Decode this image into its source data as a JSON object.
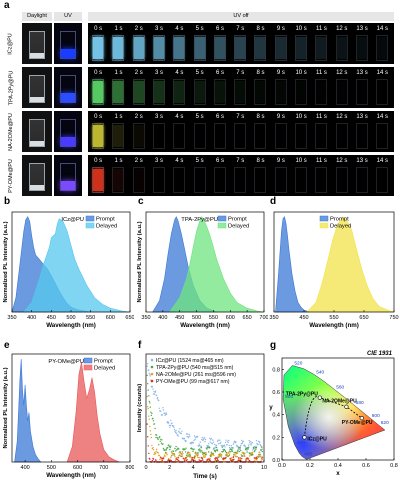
{
  "panel_letters": {
    "a": "a",
    "b": "b",
    "c": "c",
    "d": "d",
    "e": "e",
    "f": "f",
    "g": "g"
  },
  "panel_a": {
    "headers": {
      "daylight": "Daylight",
      "uv": "UV",
      "uv_off": "UV off"
    },
    "time_labels": [
      "0 s",
      "1 s",
      "2 s",
      "3 s",
      "4 s",
      "5 s",
      "6 s",
      "7 s",
      "8 s",
      "9 s",
      "10 s",
      "11 s",
      "12 s",
      "13 s",
      "14 s"
    ],
    "rows": [
      {
        "label": "ICz@PU",
        "uv_color": "#1a3cff",
        "glow_color": "#7fd8ff",
        "glow_decay": [
          1,
          0.95,
          0.85,
          0.72,
          0.6,
          0.5,
          0.42,
          0.35,
          0.28,
          0.22,
          0.18,
          0.14,
          0.1,
          0.07,
          0.05
        ]
      },
      {
        "label": "TPA-2Py@PU",
        "uv_color": "#2b4dff",
        "glow_color": "#5ee06a",
        "glow_decay": [
          1,
          0.55,
          0.35,
          0.25,
          0.18,
          0.12,
          0.09,
          0.06,
          0.04,
          0.03,
          0.02,
          0.01,
          0.01,
          0,
          0
        ]
      },
      {
        "label": "NA-2OMe@PU",
        "uv_color": "#4a3cff",
        "glow_color": "#e8e23a",
        "glow_decay": [
          0.9,
          0.15,
          0.05,
          0,
          0,
          0,
          0,
          0,
          0,
          0,
          0,
          0,
          0,
          0,
          0
        ]
      },
      {
        "label": "PY-OMe@PU",
        "uv_color": "#7a4aff",
        "glow_color": "#ff3b20",
        "glow_decay": [
          0.9,
          0.1,
          0.03,
          0,
          0,
          0,
          0,
          0,
          0,
          0,
          0,
          0,
          0,
          0,
          0
        ]
      }
    ]
  },
  "chart_data": [
    {
      "id": "b",
      "type": "area",
      "legend": [
        "Prompt",
        "Delayed"
      ],
      "inset_label": "ICz@PU",
      "xlabel": "Wavelength (nm)",
      "ylabel": "Normalized PL Intensity (a.u.)",
      "xlim": [
        350,
        650
      ],
      "ylim": [
        0,
        1.05
      ],
      "xticks": [
        350,
        400,
        450,
        500,
        550,
        600,
        650
      ],
      "series": [
        {
          "name": "Prompt",
          "color": "#3a78d6",
          "x": [
            350,
            360,
            370,
            380,
            385,
            390,
            395,
            400,
            405,
            410,
            420,
            430,
            440,
            450,
            460,
            470,
            480,
            490,
            500,
            520,
            550
          ],
          "y": [
            0,
            0.15,
            0.5,
            0.85,
            0.97,
            1.0,
            0.95,
            0.8,
            0.68,
            0.6,
            0.55,
            0.5,
            0.45,
            0.38,
            0.3,
            0.22,
            0.15,
            0.09,
            0.05,
            0.02,
            0
          ]
        },
        {
          "name": "Delayed",
          "color": "#55c8ee",
          "x": [
            380,
            400,
            420,
            430,
            440,
            445,
            450,
            455,
            460,
            465,
            470,
            480,
            490,
            500,
            510,
            520,
            540,
            560,
            580,
            600,
            630,
            650
          ],
          "y": [
            0,
            0.1,
            0.35,
            0.5,
            0.62,
            0.68,
            0.78,
            0.8,
            0.82,
            0.92,
            0.98,
            0.95,
            0.85,
            0.7,
            0.55,
            0.45,
            0.28,
            0.15,
            0.08,
            0.04,
            0.01,
            0
          ]
        }
      ]
    },
    {
      "id": "c",
      "type": "area",
      "legend": [
        "Prompt",
        "Delayed"
      ],
      "inset_label": "TPA-2Py@PU",
      "xlabel": "Wavelength (nm)",
      "ylabel": "Normalized PL Intensity (a.u.)",
      "xlim": [
        350,
        700
      ],
      "ylim": [
        0,
        1.05
      ],
      "xticks": [
        350,
        400,
        450,
        500,
        550,
        600,
        650,
        700
      ],
      "series": [
        {
          "name": "Prompt",
          "color": "#3a78d6",
          "x": [
            370,
            390,
            405,
            415,
            425,
            435,
            440,
            445,
            455,
            465,
            475,
            490,
            510,
            530,
            560
          ],
          "y": [
            0,
            0.12,
            0.35,
            0.6,
            0.82,
            0.97,
            1.0,
            0.96,
            0.82,
            0.65,
            0.48,
            0.28,
            0.12,
            0.04,
            0
          ]
        },
        {
          "name": "Delayed",
          "color": "#6ee47e",
          "x": [
            420,
            450,
            470,
            480,
            490,
            500,
            510,
            515,
            520,
            530,
            540,
            550,
            560,
            580,
            600,
            620,
            650,
            680,
            700
          ],
          "y": [
            0,
            0.15,
            0.35,
            0.5,
            0.68,
            0.85,
            0.96,
            1.0,
            0.98,
            0.9,
            0.8,
            0.68,
            0.55,
            0.35,
            0.2,
            0.1,
            0.04,
            0.01,
            0
          ]
        }
      ]
    },
    {
      "id": "d",
      "type": "area",
      "legend": [
        "Prompt",
        "Delayed"
      ],
      "xlabel": "Wavelength (nm)",
      "ylabel": "",
      "xlim": [
        350,
        750
      ],
      "ylim": [
        0,
        1.05
      ],
      "xticks": [
        350,
        450,
        550,
        650,
        750
      ],
      "series": [
        {
          "name": "Prompt",
          "color": "#3a78d6",
          "x": [
            355,
            365,
            375,
            380,
            385,
            390,
            395,
            400,
            410,
            420,
            430,
            440,
            450,
            470
          ],
          "y": [
            0,
            0.4,
            0.85,
            0.98,
            1.0,
            0.93,
            0.8,
            0.65,
            0.4,
            0.22,
            0.1,
            0.05,
            0.02,
            0
          ]
        },
        {
          "name": "Delayed",
          "color": "#f2e34a",
          "x": [
            460,
            490,
            510,
            530,
            545,
            560,
            570,
            580,
            590,
            600,
            610,
            620,
            640,
            660,
            680,
            700,
            730,
            750
          ],
          "y": [
            0,
            0.1,
            0.3,
            0.55,
            0.75,
            0.9,
            0.96,
            1.0,
            0.97,
            0.92,
            0.85,
            0.72,
            0.48,
            0.28,
            0.14,
            0.06,
            0.02,
            0
          ]
        }
      ]
    },
    {
      "id": "e",
      "type": "area",
      "legend": [
        "Prompt",
        "Delayed"
      ],
      "inset_label": "PY-OMe@PU",
      "xlabel": "Wavelength (nm)",
      "ylabel": "Normalized PL Intensity (a.u.)",
      "xlim": [
        350,
        800
      ],
      "ylim": [
        0,
        1.05
      ],
      "xticks": [
        400,
        500,
        600,
        700,
        800
      ],
      "series": [
        {
          "name": "Prompt",
          "color": "#3a78d6",
          "x": [
            360,
            370,
            375,
            380,
            385,
            390,
            395,
            400,
            405,
            410,
            415,
            420,
            430,
            440,
            450,
            460
          ],
          "y": [
            0,
            0.2,
            0.5,
            0.8,
            1.0,
            0.7,
            0.55,
            0.75,
            0.55,
            0.4,
            0.48,
            0.3,
            0.15,
            0.07,
            0.03,
            0
          ]
        },
        {
          "name": "Delayed",
          "color": "#e85858",
          "x": [
            560,
            580,
            595,
            605,
            615,
            625,
            635,
            645,
            655,
            665,
            675,
            685,
            700,
            720,
            740,
            760
          ],
          "y": [
            0,
            0.15,
            0.5,
            0.85,
            0.97,
            0.78,
            0.62,
            0.7,
            0.82,
            0.68,
            0.45,
            0.28,
            0.12,
            0.05,
            0.02,
            0
          ]
        }
      ]
    },
    {
      "id": "f",
      "type": "scatter",
      "xlabel": "Time (s)",
      "ylabel": "Intensity (counts)",
      "xlim": [
        0,
        10
      ],
      "xticks": [
        0,
        2,
        4,
        6,
        8,
        10
      ],
      "legend": [
        "ICz@PU (1524 ms@465 nm)",
        "TPA-2Py@PU (540 ms@515 nm)",
        "NA-2OMe@PU (261 ms@596 nm)",
        "PY-OMe@PU (99 ms@617 nm)"
      ],
      "series": [
        {
          "name": "ICz@PU (1524 ms@465 nm)",
          "color": "#8fb8e8",
          "tau": 1.524,
          "floor": 0.18
        },
        {
          "name": "TPA-2Py@PU (540 ms@515 nm)",
          "color": "#4aa84a",
          "tau": 0.54,
          "floor": 0.12
        },
        {
          "name": "NA-2OMe@PU (261 ms@596 nm)",
          "color": "#e8a020",
          "tau": 0.261,
          "floor": 0.07
        },
        {
          "name": "PY-OMe@PU (99 ms@617 nm)",
          "color": "#e02a2a",
          "tau": 0.099,
          "floor": 0.02
        }
      ]
    },
    {
      "id": "g",
      "type": "scatter",
      "title": "CIE 1931",
      "xlabel": "x",
      "ylabel": "y",
      "xlim": [
        0,
        0.8
      ],
      "ylim": [
        0,
        0.9
      ],
      "xticks": [
        0,
        0.2,
        0.4,
        0.6,
        0.8
      ],
      "yticks": [
        0,
        0.2,
        0.4,
        0.6,
        0.8
      ],
      "locus_labels": [
        {
          "t": "520",
          "x": 0.074,
          "y": 0.834
        },
        {
          "t": "540",
          "x": 0.23,
          "y": 0.754
        },
        {
          "t": "560",
          "x": 0.373,
          "y": 0.624
        },
        {
          "t": "580",
          "x": 0.512,
          "y": 0.487
        },
        {
          "t": "600",
          "x": 0.627,
          "y": 0.372
        },
        {
          "t": "620",
          "x": 0.691,
          "y": 0.308
        },
        {
          "t": "500",
          "x": 0.008,
          "y": 0.538
        },
        {
          "t": "480",
          "x": 0.091,
          "y": 0.133
        },
        {
          "t": "460",
          "x": 0.144,
          "y": 0.03
        }
      ],
      "points": [
        {
          "label": "ICz@PU",
          "x": 0.16,
          "y": 0.2
        },
        {
          "label": "TPA-2Py@PU",
          "x": 0.27,
          "y": 0.55
        },
        {
          "label": "NA-2OMe@PU",
          "x": 0.46,
          "y": 0.47
        },
        {
          "label": "PY-OMe@PU",
          "x": 0.57,
          "y": 0.37
        }
      ]
    }
  ],
  "colors": {
    "tick": "#000000",
    "uv_bg": "#000000",
    "vial_glass": "#cfd8e0"
  }
}
